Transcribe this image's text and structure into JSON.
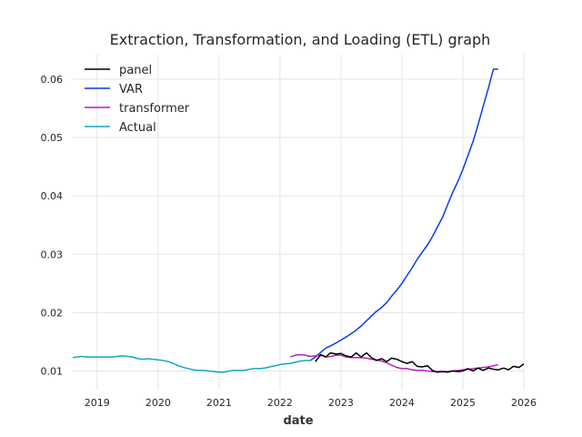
{
  "chart_data": {
    "type": "line",
    "title": "Extraction, Transformation, and Loading (ETL) graph",
    "xlabel": "date",
    "ylabel": "",
    "xlim": [
      2018.6,
      2026.0
    ],
    "ylim": [
      0.0068,
      0.0642
    ],
    "x_ticks": [
      {
        "value": 2019,
        "label": "2019"
      },
      {
        "value": 2020,
        "label": "2020"
      },
      {
        "value": 2021,
        "label": "2021"
      },
      {
        "value": 2022,
        "label": "2022"
      },
      {
        "value": 2023,
        "label": "2023"
      },
      {
        "value": 2024,
        "label": "2024"
      },
      {
        "value": 2025,
        "label": "2025"
      },
      {
        "value": 2026,
        "label": "2026"
      }
    ],
    "y_ticks": [
      {
        "value": 0.01,
        "label": "0.01"
      },
      {
        "value": 0.02,
        "label": "0.02"
      },
      {
        "value": 0.03,
        "label": "0.03"
      },
      {
        "value": 0.04,
        "label": "0.04"
      },
      {
        "value": 0.05,
        "label": "0.05"
      },
      {
        "value": 0.06,
        "label": "0.06"
      }
    ],
    "grid": true,
    "legend": "top-left",
    "series": [
      {
        "name": "panel",
        "color": "#000000",
        "x": [
          2022.58,
          2022.67,
          2022.75,
          2022.83,
          2022.92,
          2023.0,
          2023.08,
          2023.17,
          2023.25,
          2023.33,
          2023.42,
          2023.5,
          2023.58,
          2023.67,
          2023.75,
          2023.83,
          2023.92,
          2024.0,
          2024.08,
          2024.17,
          2024.25,
          2024.33,
          2024.42,
          2024.5,
          2024.58,
          2024.67,
          2024.75,
          2024.83,
          2024.92,
          2025.0,
          2025.08,
          2025.17,
          2025.25,
          2025.33,
          2025.42,
          2025.5,
          2025.58,
          2025.67,
          2025.75,
          2025.83,
          2025.92,
          2026.0
        ],
        "y": [
          0.0116,
          0.0128,
          0.0124,
          0.0131,
          0.0129,
          0.013,
          0.0126,
          0.0124,
          0.0131,
          0.0124,
          0.0131,
          0.0123,
          0.0118,
          0.0121,
          0.0116,
          0.0122,
          0.012,
          0.0116,
          0.0113,
          0.0116,
          0.0108,
          0.0107,
          0.0109,
          0.0101,
          0.0098,
          0.0099,
          0.0098,
          0.01,
          0.0099,
          0.01,
          0.0104,
          0.01,
          0.0105,
          0.0101,
          0.0105,
          0.0103,
          0.0102,
          0.0105,
          0.0102,
          0.0108,
          0.0106,
          0.0112
        ]
      },
      {
        "name": "VAR",
        "color": "#0a3bf0",
        "x": [
          2022.5,
          2022.58,
          2022.67,
          2022.75,
          2022.83,
          2022.92,
          2023.0,
          2023.08,
          2023.17,
          2023.25,
          2023.33,
          2023.42,
          2023.5,
          2023.58,
          2023.67,
          2023.75,
          2023.83,
          2023.92,
          2024.0,
          2024.08,
          2024.17,
          2024.25,
          2024.33,
          2024.42,
          2024.5,
          2024.58,
          2024.67,
          2024.75,
          2024.83,
          2024.92,
          2025.0,
          2025.08,
          2025.17,
          2025.25,
          2025.33,
          2025.42,
          2025.5,
          2025.58
        ],
        "y": [
          0.0118,
          0.0124,
          0.0132,
          0.0139,
          0.0143,
          0.0148,
          0.0153,
          0.0158,
          0.0164,
          0.017,
          0.0177,
          0.0186,
          0.0194,
          0.0202,
          0.0209,
          0.0217,
          0.0228,
          0.0239,
          0.025,
          0.0263,
          0.0277,
          0.0291,
          0.0303,
          0.0316,
          0.033,
          0.0346,
          0.0364,
          0.0385,
          0.0405,
          0.0425,
          0.0445,
          0.0468,
          0.0494,
          0.0522,
          0.0552,
          0.0585,
          0.0617,
          0.0617
        ]
      },
      {
        "name": "transformer",
        "color": "#b51fbf",
        "x": [
          2022.17,
          2022.25,
          2022.33,
          2022.42,
          2022.5,
          2022.58,
          2022.67,
          2022.75,
          2022.83,
          2022.92,
          2023.0,
          2023.08,
          2023.17,
          2023.25,
          2023.33,
          2023.42,
          2023.5,
          2023.58,
          2023.67,
          2023.75,
          2023.83,
          2023.92,
          2024.0,
          2024.08,
          2024.17,
          2024.25,
          2024.33,
          2024.42,
          2024.5,
          2024.58,
          2024.67,
          2024.75,
          2024.83,
          2024.92,
          2025.0,
          2025.08,
          2025.17,
          2025.25,
          2025.33,
          2025.42,
          2025.5,
          2025.58
        ],
        "y": [
          0.0124,
          0.0127,
          0.0128,
          0.0127,
          0.0125,
          0.0126,
          0.0127,
          0.0124,
          0.0125,
          0.0127,
          0.0127,
          0.0124,
          0.0123,
          0.0123,
          0.0123,
          0.0122,
          0.012,
          0.0119,
          0.0117,
          0.0114,
          0.011,
          0.0106,
          0.0104,
          0.0104,
          0.0102,
          0.0101,
          0.0101,
          0.01,
          0.0099,
          0.0099,
          0.0099,
          0.0099,
          0.01,
          0.0101,
          0.0102,
          0.0103,
          0.0104,
          0.0105,
          0.0106,
          0.0107,
          0.0109,
          0.0111
        ]
      },
      {
        "name": "Actual",
        "color": "#13a8c0",
        "x": [
          2018.6,
          2018.75,
          2018.83,
          2018.92,
          2019.0,
          2019.08,
          2019.17,
          2019.25,
          2019.33,
          2019.42,
          2019.5,
          2019.58,
          2019.67,
          2019.75,
          2019.83,
          2019.92,
          2020.0,
          2020.08,
          2020.17,
          2020.25,
          2020.33,
          2020.42,
          2020.5,
          2020.58,
          2020.67,
          2020.75,
          2020.83,
          2020.92,
          2021.0,
          2021.08,
          2021.17,
          2021.25,
          2021.33,
          2021.42,
          2021.5,
          2021.58,
          2021.67,
          2021.75,
          2021.83,
          2021.92,
          2022.0,
          2022.08,
          2022.17,
          2022.25,
          2022.33,
          2022.42,
          2022.5
        ],
        "y": [
          0.0123,
          0.0125,
          0.0124,
          0.0124,
          0.0124,
          0.0124,
          0.0124,
          0.0124,
          0.0125,
          0.0126,
          0.0125,
          0.0124,
          0.0121,
          0.012,
          0.0121,
          0.012,
          0.0119,
          0.0118,
          0.0116,
          0.0113,
          0.0109,
          0.0106,
          0.0104,
          0.0102,
          0.0101,
          0.0101,
          0.01,
          0.0099,
          0.0098,
          0.0098,
          0.01,
          0.0101,
          0.0101,
          0.0101,
          0.0103,
          0.0104,
          0.0104,
          0.0105,
          0.0107,
          0.0109,
          0.0111,
          0.0112,
          0.0113,
          0.0115,
          0.0117,
          0.0118,
          0.0118
        ]
      }
    ]
  }
}
